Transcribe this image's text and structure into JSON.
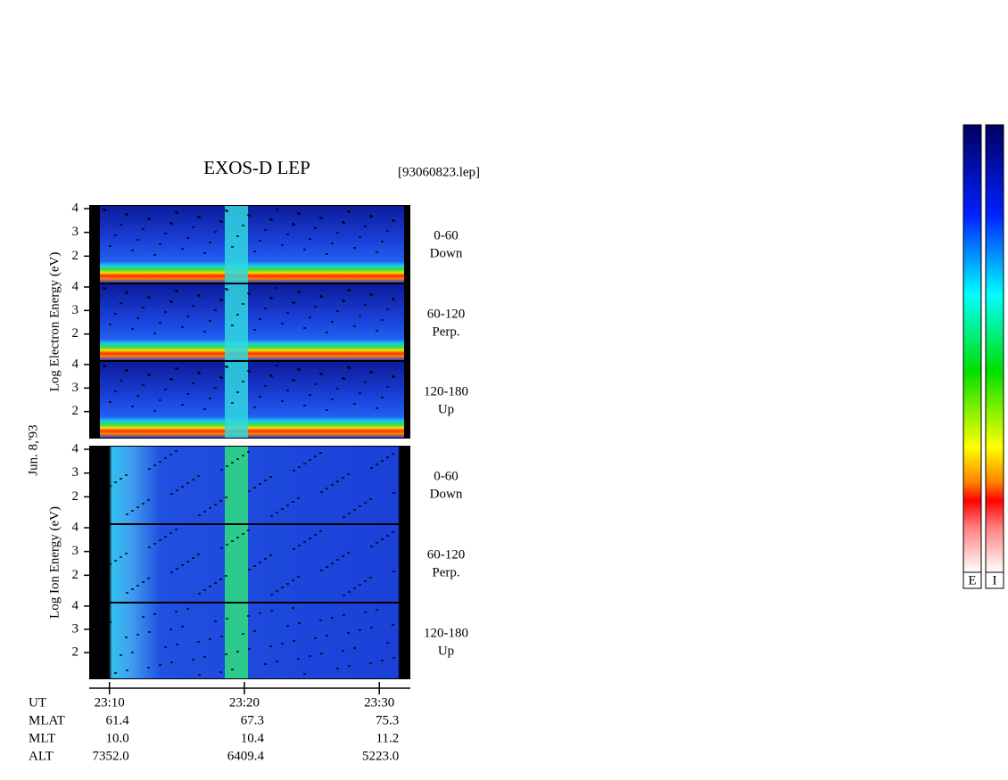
{
  "chart_data": {
    "type": "spectrogram",
    "title": "EXOS-D LEP",
    "file_label": "[93060823.lep]",
    "date_label": "Jun. 8,'93",
    "groups": [
      {
        "ylabel": "Log Electron Energy (eV)",
        "panels": [
          {
            "label": "0-60",
            "sublabel": "Down"
          },
          {
            "label": "60-120",
            "sublabel": "Perp."
          },
          {
            "label": "120-180",
            "sublabel": "Up"
          }
        ]
      },
      {
        "ylabel": "Log Ion Energy (eV)",
        "panels": [
          {
            "label": "0-60",
            "sublabel": "Down"
          },
          {
            "label": "60-120",
            "sublabel": "Perp."
          },
          {
            "label": "120-180",
            "sublabel": "Up"
          }
        ]
      }
    ],
    "ylim": [
      0.85,
      4.15
    ],
    "yticks": [
      2,
      3,
      4
    ],
    "xlim": [
      1388.5,
      1412.3
    ],
    "xticks": [
      {
        "value": 1390,
        "label": "23:10"
      },
      {
        "value": 1400,
        "label": "23:20"
      },
      {
        "value": 1410,
        "label": "23:30"
      }
    ],
    "ut_label": "UT",
    "orbit_rows": [
      {
        "label": "MLAT",
        "values": [
          "61.4",
          "67.3",
          "75.3"
        ]
      },
      {
        "label": "MLT",
        "values": [
          "10.0",
          "10.4",
          "11.2"
        ]
      },
      {
        "label": "ALT",
        "values": [
          "7352.0",
          "6409.4",
          "5223.0"
        ]
      }
    ],
    "colorbar_labels": [
      "E",
      "I"
    ]
  }
}
